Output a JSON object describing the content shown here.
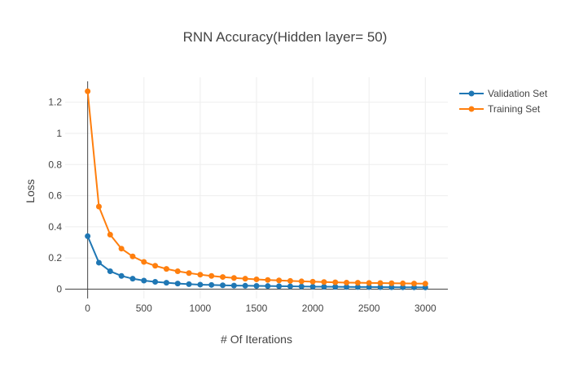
{
  "chart_data": {
    "type": "line",
    "title": "RNN Accuracy(Hidden layer= 50)",
    "xlabel": "# Of Iterations",
    "ylabel": "Loss",
    "xlim": [
      -200,
      3200
    ],
    "ylim": [
      -0.06,
      1.36
    ],
    "x_ticks": [
      0,
      500,
      1000,
      1500,
      2000,
      2500,
      3000
    ],
    "y_ticks": [
      0,
      0.2,
      0.4,
      0.6,
      0.8,
      1,
      1.2
    ],
    "grid": true,
    "legend_position": "top-right",
    "x": [
      0,
      100,
      200,
      300,
      400,
      500,
      600,
      700,
      800,
      900,
      1000,
      1100,
      1200,
      1300,
      1400,
      1500,
      1600,
      1700,
      1800,
      1900,
      2000,
      2100,
      2200,
      2300,
      2400,
      2500,
      2600,
      2700,
      2800,
      2900,
      3000
    ],
    "series": [
      {
        "name": "Validation Set",
        "color": "#1f77b4",
        "values": [
          0.34,
          0.17,
          0.115,
          0.085,
          0.067,
          0.055,
          0.047,
          0.041,
          0.036,
          0.032,
          0.029,
          0.027,
          0.025,
          0.023,
          0.022,
          0.021,
          0.02,
          0.019,
          0.018,
          0.017,
          0.016,
          0.0155,
          0.015,
          0.0145,
          0.014,
          0.0135,
          0.013,
          0.0125,
          0.012,
          0.0115,
          0.011
        ]
      },
      {
        "name": "Training Set",
        "color": "#ff7f0e",
        "values": [
          1.27,
          0.53,
          0.35,
          0.26,
          0.21,
          0.175,
          0.15,
          0.13,
          0.115,
          0.103,
          0.093,
          0.085,
          0.078,
          0.072,
          0.067,
          0.063,
          0.059,
          0.056,
          0.053,
          0.05,
          0.048,
          0.046,
          0.044,
          0.042,
          0.041,
          0.04,
          0.039,
          0.038,
          0.037,
          0.036,
          0.035
        ]
      }
    ]
  }
}
